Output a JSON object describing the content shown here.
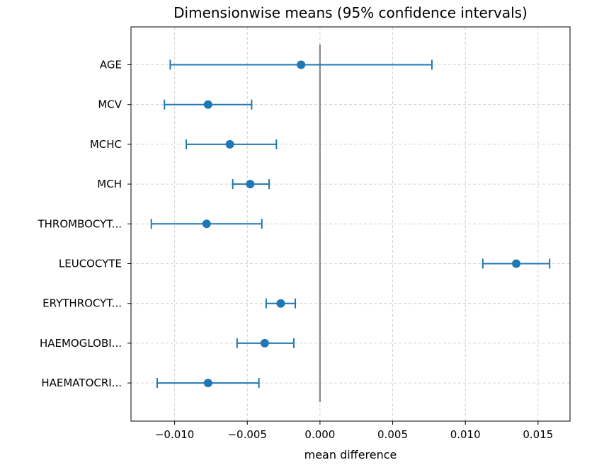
{
  "chart_data": {
    "type": "errorbar",
    "orientation": "horizontal",
    "title": "Dimensionwise means (95% confidence intervals)",
    "xlabel": "mean difference",
    "ylabel": "",
    "xlim": [
      -0.013,
      0.0172
    ],
    "xticks": [
      -0.01,
      -0.005,
      0.0,
      0.005,
      0.01,
      0.015
    ],
    "xtick_labels": [
      "−0.010",
      "−0.005",
      "0.000",
      "0.005",
      "0.010",
      "0.015"
    ],
    "grid": true,
    "reference_line": 0.0,
    "categories": [
      "AGE",
      "MCV",
      "MCHC",
      "MCH",
      "THROMBOCYT...",
      "LEUCOCYTE",
      "ERYTHROCYT...",
      "HAEMOGLOBI...",
      "HAEMATOCRI..."
    ],
    "points": [
      {
        "label": "AGE",
        "mean": -0.0013,
        "low": -0.0103,
        "high": 0.0077
      },
      {
        "label": "MCV",
        "mean": -0.0077,
        "low": -0.0107,
        "high": -0.0047
      },
      {
        "label": "MCHC",
        "mean": -0.0062,
        "low": -0.0092,
        "high": -0.003
      },
      {
        "label": "MCH",
        "mean": -0.0048,
        "low": -0.006,
        "high": -0.0035
      },
      {
        "label": "THROMBOCYT...",
        "mean": -0.0078,
        "low": -0.0116,
        "high": -0.004
      },
      {
        "label": "LEUCOCYTE",
        "mean": 0.0135,
        "low": 0.0112,
        "high": 0.0158
      },
      {
        "label": "ERYTHROCYT...",
        "mean": -0.0027,
        "low": -0.0037,
        "high": -0.0017
      },
      {
        "label": "HAEMOGLOBI...",
        "mean": -0.0038,
        "low": -0.0057,
        "high": -0.0018
      },
      {
        "label": "HAEMATOCRI...",
        "mean": -0.0077,
        "low": -0.0112,
        "high": -0.0042
      }
    ],
    "colors": {
      "series": "#1f77b4",
      "reference_line": "#7f7f7f",
      "grid": "#b0b0b0"
    }
  }
}
